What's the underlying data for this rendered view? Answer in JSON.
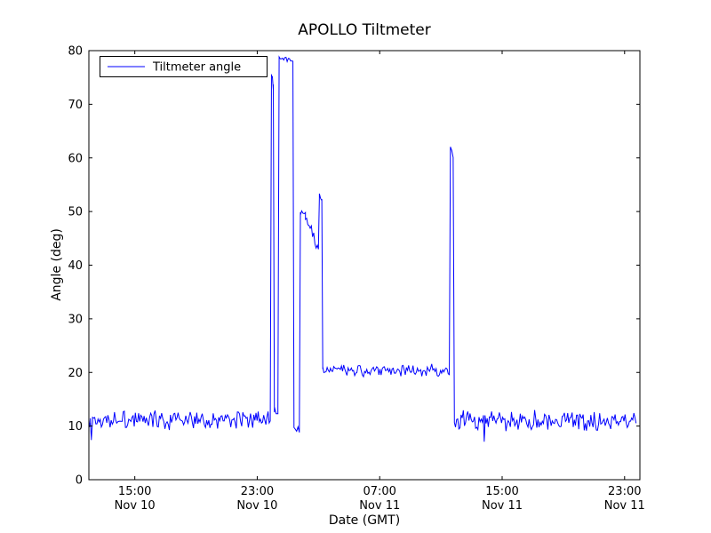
{
  "chart_data": {
    "type": "line",
    "title": "APOLLO Tiltmeter",
    "xlabel": "Date (GMT)",
    "ylabel": "Angle (deg)",
    "ylim": [
      0,
      80
    ],
    "x_domain_hours": [
      0,
      36
    ],
    "x_axis_start": "Nov 10 12:00",
    "grid": false,
    "legend_position": "upper left",
    "legend_entries": [
      "Tiltmeter angle"
    ],
    "line_color": "#0000ff",
    "axis_color": "#000000",
    "background_color": "#ffffff",
    "yticks": [
      0,
      10,
      20,
      30,
      40,
      50,
      60,
      70,
      80
    ],
    "xticks": [
      {
        "t": 3,
        "time": "15:00",
        "date": "Nov 10"
      },
      {
        "t": 11,
        "time": "23:00",
        "date": "Nov 10"
      },
      {
        "t": 19,
        "time": "07:00",
        "date": "Nov 11"
      },
      {
        "t": 27,
        "time": "15:00",
        "date": "Nov 11"
      },
      {
        "t": 35,
        "time": "23:00",
        "date": "Nov 11"
      }
    ],
    "segments": [
      {
        "t0": 0.0,
        "t1": 0.1,
        "v0": 10.5,
        "v1": 11.0,
        "noise": 1.0
      },
      {
        "t0": 0.1,
        "t1": 0.16,
        "v0": 11.0,
        "v1": 7.6,
        "noise": 0.3
      },
      {
        "t0": 0.16,
        "t1": 0.24,
        "v0": 7.6,
        "v1": 11.0,
        "noise": 0.3
      },
      {
        "t0": 0.24,
        "t1": 11.85,
        "v0": 11.0,
        "v1": 11.3,
        "noise": 1.05
      },
      {
        "t0": 11.85,
        "t1": 11.93,
        "v0": 11.5,
        "v1": 75.5,
        "noise": 0.3
      },
      {
        "t0": 11.93,
        "t1": 12.05,
        "v0": 75.5,
        "v1": 74.0,
        "noise": 0.8
      },
      {
        "t0": 12.05,
        "t1": 12.12,
        "v0": 74.0,
        "v1": 12.5,
        "noise": 0.3
      },
      {
        "t0": 12.12,
        "t1": 12.35,
        "v0": 12.5,
        "v1": 12.8,
        "noise": 0.7
      },
      {
        "t0": 12.35,
        "t1": 12.43,
        "v0": 12.8,
        "v1": 78.6,
        "noise": 0.2
      },
      {
        "t0": 12.43,
        "t1": 13.33,
        "v0": 78.6,
        "v1": 78.2,
        "noise": 0.3
      },
      {
        "t0": 13.33,
        "t1": 13.4,
        "v0": 78.2,
        "v1": 10.0,
        "noise": 0.2
      },
      {
        "t0": 13.4,
        "t1": 13.75,
        "v0": 10.0,
        "v1": 8.8,
        "noise": 0.7
      },
      {
        "t0": 13.75,
        "t1": 13.82,
        "v0": 8.8,
        "v1": 50.0,
        "noise": 0.2
      },
      {
        "t0": 13.82,
        "t1": 14.15,
        "v0": 50.0,
        "v1": 49.3,
        "noise": 0.7
      },
      {
        "t0": 14.15,
        "t1": 15.0,
        "v0": 49.3,
        "v1": 43.5,
        "noise": 0.8
      },
      {
        "t0": 15.0,
        "t1": 15.06,
        "v0": 43.5,
        "v1": 52.8,
        "noise": 0.2
      },
      {
        "t0": 15.06,
        "t1": 15.22,
        "v0": 52.8,
        "v1": 52.3,
        "noise": 0.3
      },
      {
        "t0": 15.22,
        "t1": 15.28,
        "v0": 52.3,
        "v1": 20.5,
        "noise": 0.2
      },
      {
        "t0": 15.28,
        "t1": 23.55,
        "v0": 20.3,
        "v1": 20.3,
        "noise": 0.65
      },
      {
        "t0": 23.55,
        "t1": 23.62,
        "v0": 20.5,
        "v1": 62.0,
        "noise": 0.2
      },
      {
        "t0": 23.62,
        "t1": 23.8,
        "v0": 62.0,
        "v1": 59.5,
        "noise": 0.4
      },
      {
        "t0": 23.8,
        "t1": 23.88,
        "v0": 59.5,
        "v1": 11.5,
        "noise": 0.3
      },
      {
        "t0": 23.88,
        "t1": 25.78,
        "v0": 11.0,
        "v1": 11.0,
        "noise": 1.05
      },
      {
        "t0": 25.78,
        "t1": 25.83,
        "v0": 11.0,
        "v1": 7.0,
        "noise": 0.3
      },
      {
        "t0": 25.83,
        "t1": 25.88,
        "v0": 7.0,
        "v1": 11.0,
        "noise": 0.3
      },
      {
        "t0": 25.88,
        "t1": 35.75,
        "v0": 11.0,
        "v1": 10.8,
        "noise": 1.05
      }
    ]
  }
}
